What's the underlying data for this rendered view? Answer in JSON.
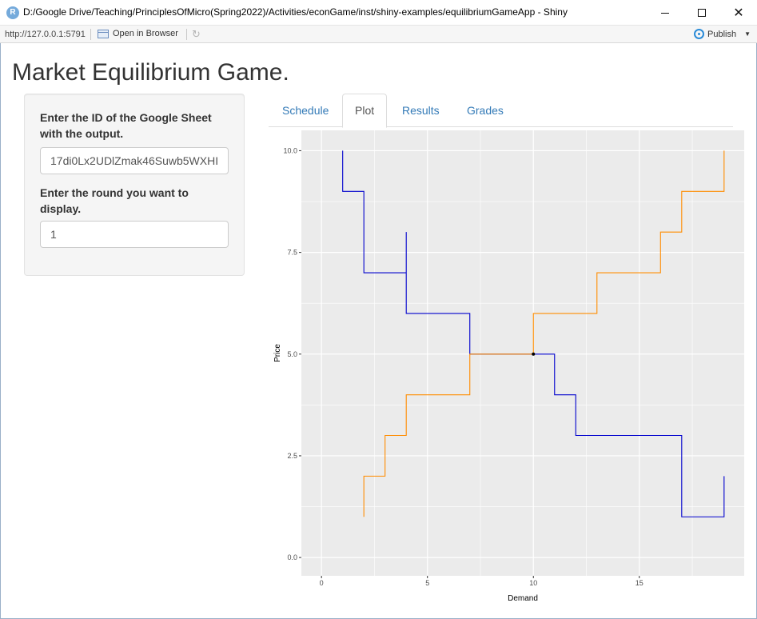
{
  "window": {
    "title": "D:/Google Drive/Teaching/PrinciplesOfMicro(Spring2022)/Activities/econGame/inst/shiny-examples/equilibriumGameApp - Shiny",
    "app_icon_letter": "R"
  },
  "toolbar": {
    "url": "http://127.0.0.1:5791",
    "open_in_browser": "Open in Browser",
    "publish": "Publish"
  },
  "page": {
    "title": "Market Equilibrium Game."
  },
  "sidebar": {
    "sheet_label": "Enter the ID of the Google Sheet with the output.",
    "sheet_value": "17di0Lx2UDlZmak46Suwb5WXHI",
    "round_label": "Enter the round you want to display.",
    "round_value": "1"
  },
  "tabs": [
    {
      "label": "Schedule",
      "active": false
    },
    {
      "label": "Plot",
      "active": true
    },
    {
      "label": "Results",
      "active": false
    },
    {
      "label": "Grades",
      "active": false
    }
  ],
  "chart_data": {
    "type": "line",
    "xlabel": "Demand",
    "ylabel": "Price",
    "xlim": [
      -0.95,
      19.95
    ],
    "ylim": [
      -0.45,
      10.5
    ],
    "x_ticks": [
      0,
      5,
      10,
      15
    ],
    "x_tick_labels": [
      "0",
      "5",
      "10",
      "15"
    ],
    "y_ticks": [
      0,
      2.5,
      5,
      7.5,
      10
    ],
    "y_tick_labels": [
      "0.0",
      "2.5",
      "5.0",
      "7.5",
      "10.0"
    ],
    "grid": true,
    "background": "#ebebeb",
    "series": [
      {
        "color": "#0000cd",
        "points": [
          [
            1,
            10
          ],
          [
            1,
            9
          ],
          [
            2,
            9
          ],
          [
            2,
            7
          ],
          [
            4,
            7
          ],
          [
            4,
            8
          ],
          [
            4,
            6
          ],
          [
            7,
            6
          ],
          [
            7,
            5
          ],
          [
            10,
            5
          ],
          [
            11,
            5
          ],
          [
            11,
            4
          ],
          [
            12,
            4
          ],
          [
            12,
            3
          ],
          [
            17,
            3
          ],
          [
            17,
            1
          ],
          [
            19,
            1
          ],
          [
            19,
            2
          ]
        ]
      },
      {
        "color": "#ff8c00",
        "points": [
          [
            2,
            1
          ],
          [
            2,
            2
          ],
          [
            3,
            2
          ],
          [
            3,
            3
          ],
          [
            4,
            3
          ],
          [
            4,
            4
          ],
          [
            7,
            4
          ],
          [
            7,
            5
          ],
          [
            10,
            5
          ],
          [
            10,
            6
          ],
          [
            13,
            6
          ],
          [
            13,
            7
          ],
          [
            16,
            7
          ],
          [
            16,
            8
          ],
          [
            17,
            8
          ],
          [
            17,
            9
          ],
          [
            19,
            9
          ],
          [
            19,
            10
          ]
        ]
      }
    ],
    "equilibrium_point": [
      10,
      5
    ]
  }
}
